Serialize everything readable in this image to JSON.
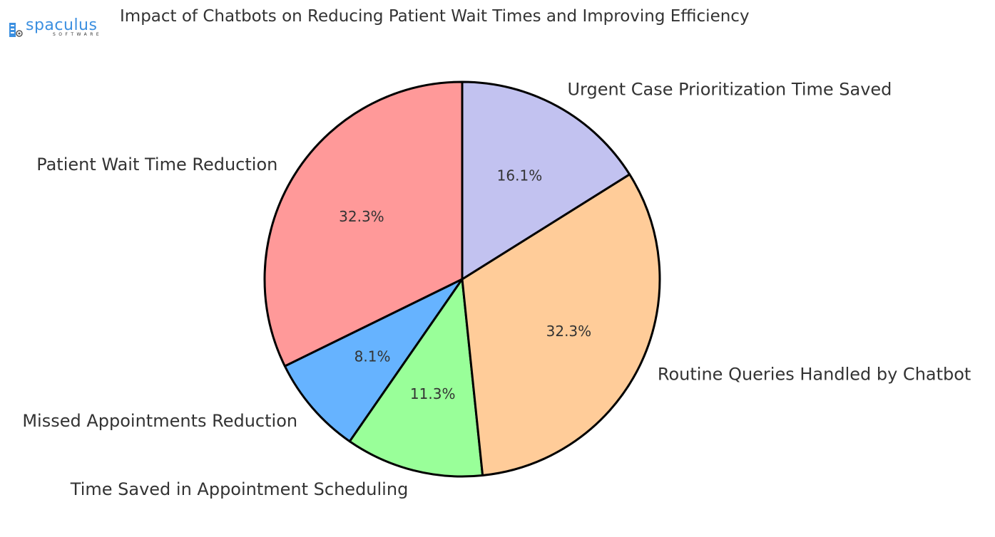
{
  "brand": {
    "name": "spaculus",
    "tagline": "SOFTWARE",
    "color": "#3b8fe0"
  },
  "chart_data": {
    "type": "pie",
    "title": "Impact of Chatbots on Reducing Patient Wait Times and Improving Efficiency",
    "slices": [
      {
        "label": "Patient Wait Time Reduction",
        "value": 32.3,
        "pct_label": "32.3%",
        "color": "#ff9999"
      },
      {
        "label": "Missed Appointments Reduction",
        "value": 8.1,
        "pct_label": "8.1%",
        "color": "#66b3ff"
      },
      {
        "label": "Time Saved in Appointment Scheduling",
        "value": 11.3,
        "pct_label": "11.3%",
        "color": "#99ff99"
      },
      {
        "label": "Routine Queries Handled by Chatbot",
        "value": 32.3,
        "pct_label": "32.3%",
        "color": "#ffcc99"
      },
      {
        "label": "Urgent Case Prioritization Time Saved",
        "value": 16.1,
        "pct_label": "16.1%",
        "color": "#c2c2f0"
      }
    ],
    "start_angle_deg": 90,
    "direction": "counterclockwise",
    "edge_color": "#000000",
    "legend": "none"
  }
}
